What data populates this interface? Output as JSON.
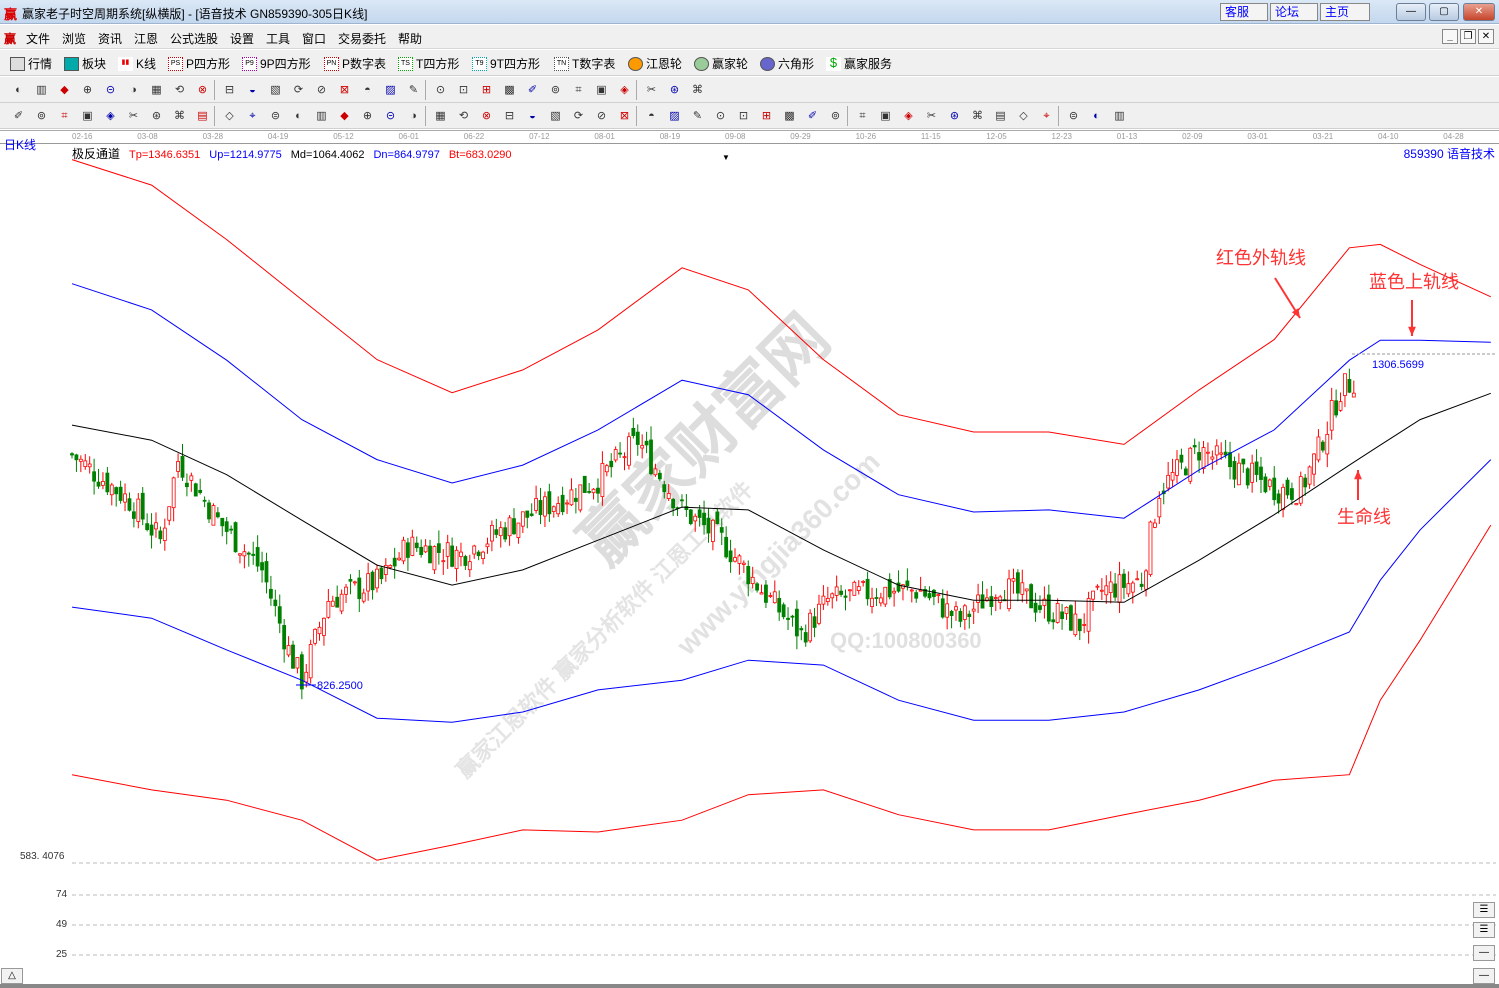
{
  "window": {
    "logo": "赢",
    "title": "赢家老子时空周期系统[纵横版] - [语音技术   GN859390-305日K线]",
    "links": [
      "客服",
      "论坛",
      "主页"
    ],
    "controls": {
      "min": "—",
      "max": "▢",
      "close": "✕"
    }
  },
  "menu": {
    "logo": "赢",
    "items": [
      "文件",
      "浏览",
      "资讯",
      "江恩",
      "公式选股",
      "设置",
      "工具",
      "窗口",
      "交易委托",
      "帮助"
    ],
    "mdi": [
      "_",
      "❐",
      "✕"
    ]
  },
  "toolbar1": [
    {
      "icon": "quotes-table-icon",
      "label": "行情"
    },
    {
      "icon": "blocks-icon",
      "label": "板块"
    },
    {
      "icon": "kline-icon",
      "label": "K线"
    },
    {
      "icon": "ps-icon",
      "tag": "PS",
      "label": "P四方形"
    },
    {
      "icon": "p9-icon",
      "tag": "P9",
      "label": "9P四方形"
    },
    {
      "icon": "pn-icon",
      "tag": "PN",
      "label": "P数字表"
    },
    {
      "icon": "ts-icon",
      "tag": "TS",
      "label": "T四方形"
    },
    {
      "icon": "t9-icon",
      "tag": "T9",
      "label": "9T四方形"
    },
    {
      "icon": "tn-icon",
      "tag": "TN",
      "label": "T数字表"
    },
    {
      "icon": "gann-wheel-icon",
      "label": "江恩轮"
    },
    {
      "icon": "winner-wheel-icon",
      "label": "赢家轮"
    },
    {
      "icon": "hexagon-icon",
      "label": "六角形"
    },
    {
      "icon": "dollar-icon",
      "label": "赢家服务"
    }
  ],
  "period_label": "日K线",
  "indicator": {
    "name": "极反通道",
    "tp": "Tp=1346.6351",
    "up": "Up=1214.9775",
    "md": "Md=1064.4062",
    "dn": "Dn=864.9797",
    "bt": "Bt=683.0290"
  },
  "stock": "859390  语音技术",
  "colors": {
    "up_candle": "#ff0000",
    "down_candle": "#008000",
    "tp": "#ff0000",
    "up": "#0000ff",
    "md": "#000000",
    "dn": "#0000ff",
    "bt": "#ff0000",
    "annotation": "#ff3333"
  },
  "chart_data": {
    "type": "candlestick",
    "date_ticks": [
      "02-16",
      "03-08",
      "03-28",
      "04-19",
      "05-12",
      "06-01",
      "06-22",
      "07-12",
      "08-01",
      "08-19",
      "09-08",
      "09-29",
      "10-26",
      "11-15",
      "12-05",
      "12-23",
      "01-13",
      "02-09",
      "03-01",
      "03-21",
      "04-10",
      "04-28"
    ],
    "band_x": [
      0,
      18,
      35,
      52,
      69,
      86,
      102,
      119,
      138,
      153,
      170,
      187,
      204,
      221,
      238,
      255,
      272,
      289,
      296,
      305,
      321
    ],
    "series": [
      {
        "key": "tp",
        "values": [
          1603,
          1566,
          1487,
          1400,
          1313,
          1265,
          1298,
          1356,
          1446,
          1414,
          1313,
          1233,
          1208,
          1208,
          1190,
          1269,
          1342,
          1475,
          1480,
          1451,
          1404
        ]
      },
      {
        "key": "up",
        "values": [
          1423,
          1385,
          1312,
          1226,
          1168,
          1134,
          1160,
          1211,
          1283,
          1262,
          1182,
          1117,
          1092,
          1095,
          1083,
          1153,
          1211,
          1312,
          1341,
          1341,
          1338
        ]
      },
      {
        "key": "md",
        "values": [
          1218,
          1196,
          1146,
          1080,
          1015,
          986,
          1008,
          1051,
          1099,
          1095,
          1037,
          986,
          964,
          964,
          961,
          1022,
          1088,
          1160,
          1189,
          1226,
          1264
        ]
      },
      {
        "key": "dn",
        "values": [
          954,
          938,
          892,
          848,
          793,
          787,
          802,
          834,
          848,
          877,
          870,
          819,
          790,
          790,
          802,
          834,
          874,
          918,
          993,
          1066,
          1168
        ]
      },
      {
        "key": "bt",
        "values": [
          711,
          689,
          674,
          645,
          587,
          609,
          631,
          628,
          645,
          682,
          689,
          653,
          631,
          631,
          653,
          674,
          703,
          711,
          819,
          906,
          1073
        ]
      }
    ],
    "close_trend": [
      [
        0,
        1175
      ],
      [
        13,
        1109
      ],
      [
        20,
        1051
      ],
      [
        24,
        1167
      ],
      [
        33,
        1080
      ],
      [
        43,
        1008
      ],
      [
        49,
        892
      ],
      [
        52,
        848
      ],
      [
        58,
        964
      ],
      [
        70,
        993
      ],
      [
        76,
        1044
      ],
      [
        88,
        1030
      ],
      [
        101,
        1080
      ],
      [
        119,
        1138
      ],
      [
        128,
        1196
      ],
      [
        138,
        1095
      ],
      [
        147,
        1051
      ],
      [
        156,
        979
      ],
      [
        165,
        914
      ],
      [
        171,
        964
      ],
      [
        183,
        978
      ],
      [
        192,
        978
      ],
      [
        201,
        935
      ],
      [
        210,
        986
      ],
      [
        221,
        950
      ],
      [
        228,
        928
      ],
      [
        233,
        978
      ],
      [
        242,
        993
      ],
      [
        246,
        1124
      ],
      [
        255,
        1182
      ],
      [
        264,
        1153
      ],
      [
        273,
        1124
      ],
      [
        278,
        1124
      ],
      [
        282,
        1182
      ],
      [
        287,
        1269
      ],
      [
        290,
        1283
      ]
    ],
    "low_label": "826.2500",
    "high_label": "1306.5699",
    "y_bottom_label": "583. 4076",
    "sub_ticks": [
      "74",
      "49",
      "25"
    ]
  },
  "annotations": {
    "red_outer": "红色外轨线",
    "blue_upper": "蓝色上轨线",
    "life_line": "生命线"
  },
  "watermark": {
    "main": "赢家财富网",
    "url": "www.yingjia360.com",
    "line1": "赢家江恩软件 赢家分析软件 江恩工具软件",
    "qq": "QQ:100800360"
  },
  "bottom": {
    "scroll_up": "△"
  }
}
